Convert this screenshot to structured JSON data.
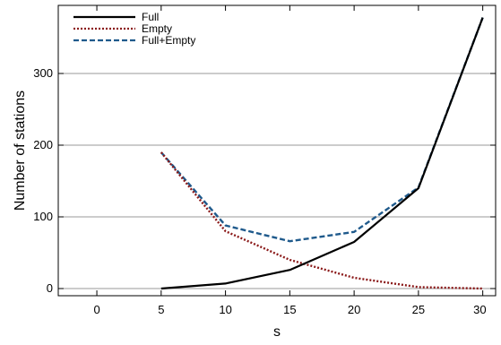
{
  "chart_data": {
    "type": "line",
    "title": "",
    "xlabel": "s",
    "ylabel": "Number of stations",
    "xlim": [
      -3,
      31
    ],
    "ylim": [
      -10,
      395
    ],
    "x_ticks": [
      0,
      5,
      10,
      15,
      20,
      25,
      30
    ],
    "y_ticks": [
      0,
      100,
      200,
      300
    ],
    "grid": "horizontal",
    "legend_position": "top-left",
    "x": [
      5,
      10,
      15,
      20,
      25,
      30
    ],
    "series": [
      {
        "name": "Full",
        "values": [
          0,
          7,
          26,
          65,
          140,
          378
        ],
        "color": "#000000",
        "style": "solid"
      },
      {
        "name": "Empty",
        "values": [
          190,
          80,
          40,
          15,
          2,
          0
        ],
        "color": "#8b1a1a",
        "style": "dotted"
      },
      {
        "name": "Full+Empty",
        "values": [
          190,
          88,
          66,
          79,
          141,
          378
        ],
        "color": "#1f5a8c",
        "style": "dashed"
      }
    ]
  }
}
